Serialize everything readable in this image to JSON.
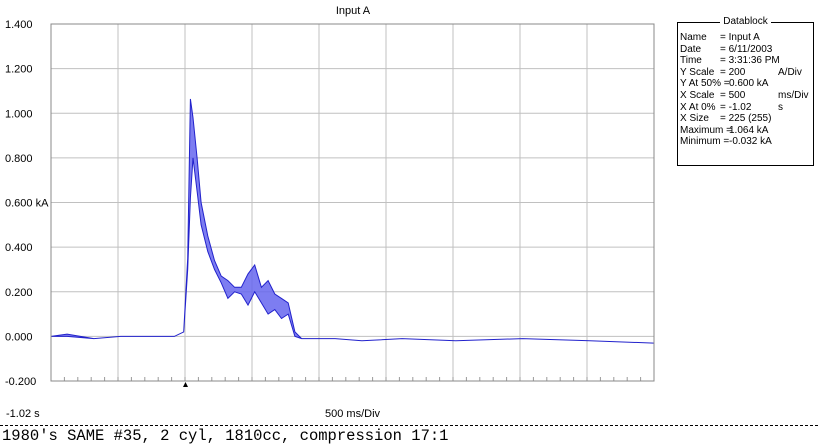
{
  "chart_data": {
    "type": "area",
    "title": "Input A",
    "ylim": [
      -0.2,
      1.4
    ],
    "y_ticks": [
      "1.400",
      "1.200",
      "1.000",
      "0.800",
      "0.600 kA",
      "0.400",
      "0.200",
      "0.000",
      "-0.200"
    ],
    "y_tick_values": [
      1.4,
      1.2,
      1.0,
      0.8,
      0.6,
      0.4,
      0.2,
      0.0,
      -0.2
    ],
    "x_start_label": "-1.02 s",
    "x_scale_label": "500 ms/Div",
    "xlim": [
      -1.02,
      3.48
    ],
    "x_divisions": 9,
    "grid": true,
    "series": [
      {
        "color": "#6666ee",
        "x": [
          -1.02,
          -0.9,
          -0.7,
          -0.5,
          -0.3,
          -0.1,
          -0.03,
          0.0,
          0.02,
          0.04,
          0.07,
          0.1,
          0.15,
          0.2,
          0.25,
          0.3,
          0.35,
          0.4,
          0.45,
          0.5,
          0.55,
          0.6,
          0.65,
          0.7,
          0.75,
          0.8,
          0.85,
          0.9,
          0.95,
          1.0,
          1.1,
          1.3,
          1.6,
          2.0,
          2.5,
          3.0,
          3.48
        ],
        "upper": [
          0.0,
          0.01,
          -0.01,
          0.0,
          0.0,
          0.0,
          0.02,
          0.35,
          1.064,
          0.98,
          0.8,
          0.6,
          0.45,
          0.34,
          0.27,
          0.25,
          0.22,
          0.22,
          0.28,
          0.32,
          0.22,
          0.25,
          0.19,
          0.17,
          0.15,
          0.02,
          -0.01,
          -0.01,
          -0.01,
          -0.01,
          -0.01,
          -0.02,
          -0.01,
          -0.02,
          -0.01,
          -0.02,
          -0.03
        ],
        "lower": [
          0.0,
          0.0,
          -0.01,
          0.0,
          0.0,
          0.0,
          0.02,
          0.3,
          0.62,
          0.8,
          0.65,
          0.5,
          0.38,
          0.3,
          0.24,
          0.17,
          0.2,
          0.19,
          0.14,
          0.2,
          0.15,
          0.1,
          0.12,
          0.08,
          0.1,
          0.0,
          -0.01,
          -0.01,
          -0.01,
          -0.01,
          -0.01,
          -0.02,
          -0.01,
          -0.02,
          -0.01,
          -0.02,
          -0.03
        ]
      }
    ]
  },
  "datablock": {
    "title": "Datablock",
    "rows": [
      {
        "key": "Name",
        "value": "= Input A",
        "unit": ""
      },
      {
        "key": "Date",
        "value": "= 6/11/2003",
        "unit": ""
      },
      {
        "key": "Time",
        "value": "= 3:31:36 PM",
        "unit": ""
      },
      {
        "key": "Y Scale",
        "value": "= 200",
        "unit": "A/Div"
      },
      {
        "key": "Y At 50% =",
        "value": "0.600 kA",
        "unit": ""
      },
      {
        "key": "X Scale",
        "value": "= 500",
        "unit": "ms/Div"
      },
      {
        "key": "X At 0%",
        "value": "=   -1.02",
        "unit": "s"
      },
      {
        "key": "X Size",
        "value": "= 225 (255)",
        "unit": ""
      },
      {
        "key": "Maximum =",
        "value": "1.064 kA",
        "unit": ""
      },
      {
        "key": "Minimum =",
        "value": "-0.032 kA",
        "unit": ""
      }
    ]
  },
  "caption": "1980's SAME #35, 2 cyl, 1810cc, compression 17:1"
}
